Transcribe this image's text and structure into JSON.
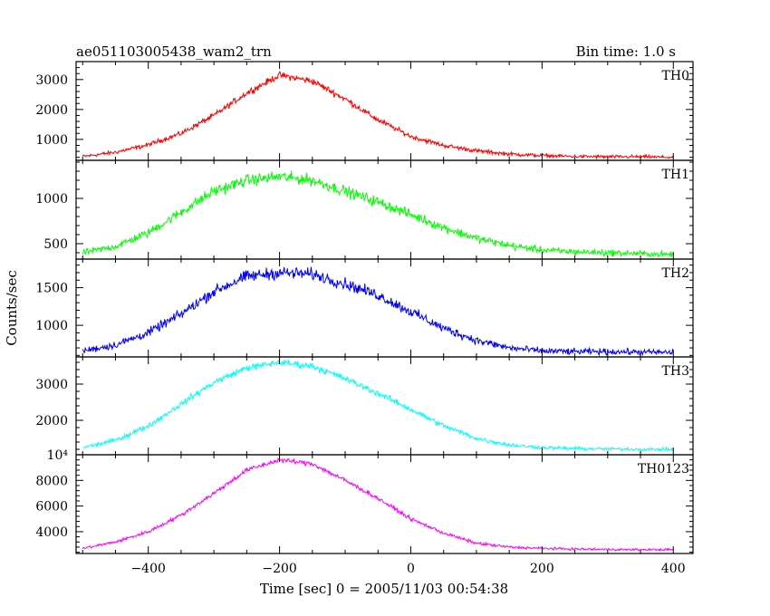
{
  "header": {
    "title": "ae051103005438_wam2_trn",
    "bin_time": "Bin time: 1.0 s"
  },
  "chart_data": {
    "type": "line",
    "xlabel": "Time [sec] 0 = 2005/11/03 00:54:38",
    "ylabel": "Counts/sec",
    "xlim": [
      -510,
      430
    ],
    "x_ticks": [
      -400,
      -200,
      0,
      200,
      400
    ],
    "x_tick_labels": [
      "−400",
      "−200",
      "0",
      "200",
      "400"
    ],
    "series": [
      {
        "name": "TH0",
        "color": "#ff0000",
        "ylim": [
          300,
          3600
        ],
        "y_ticks": [
          1000,
          2000,
          3000
        ],
        "y_tick_labels": [
          "1000",
          "2000",
          "3000"
        ],
        "baseline": 400,
        "peak": 3150,
        "peak_time": -200,
        "noise": 95,
        "x": [
          -500,
          -450,
          -400,
          -350,
          -300,
          -250,
          -200,
          -150,
          -100,
          -50,
          0,
          50,
          100,
          150,
          200,
          250,
          300,
          350,
          400
        ],
        "values": [
          430,
          570,
          820,
          1200,
          1800,
          2550,
          3150,
          2950,
          2350,
          1650,
          1100,
          800,
          620,
          510,
          460,
          430,
          420,
          420,
          400
        ]
      },
      {
        "name": "TH1",
        "color": "#00ff00",
        "ylim": [
          330,
          1420
        ],
        "y_ticks": [
          500,
          1000
        ],
        "y_tick_labels": [
          "500",
          "1000"
        ],
        "baseline": 380,
        "peak": 1240,
        "peak_time": -200,
        "noise": 55,
        "x": [
          -500,
          -450,
          -400,
          -350,
          -300,
          -250,
          -200,
          -150,
          -100,
          -50,
          0,
          50,
          100,
          150,
          200,
          250,
          300,
          350,
          400
        ],
        "values": [
          400,
          470,
          620,
          850,
          1080,
          1200,
          1240,
          1200,
          1080,
          960,
          820,
          680,
          560,
          480,
          430,
          410,
          400,
          390,
          380
        ]
      },
      {
        "name": "TH2",
        "color": "#0000ff",
        "ylim": [
          580,
          1880
        ],
        "y_ticks": [
          1000,
          1500
        ],
        "y_tick_labels": [
          "1000",
          "1500"
        ],
        "baseline": 640,
        "peak": 1700,
        "peak_time": -200,
        "noise": 70,
        "x": [
          -500,
          -450,
          -400,
          -350,
          -300,
          -250,
          -200,
          -150,
          -100,
          -50,
          0,
          50,
          100,
          150,
          200,
          250,
          300,
          350,
          400
        ],
        "values": [
          660,
          740,
          900,
          1150,
          1450,
          1650,
          1700,
          1680,
          1550,
          1400,
          1180,
          960,
          800,
          700,
          660,
          650,
          650,
          645,
          640
        ]
      },
      {
        "name": "TH3",
        "color": "#00ffff",
        "ylim": [
          1050,
          3750
        ],
        "y_ticks": [
          2000,
          3000
        ],
        "y_tick_labels": [
          "2000",
          "3000"
        ],
        "baseline": 1200,
        "peak": 3600,
        "peak_time": -200,
        "noise": 80,
        "x": [
          -500,
          -450,
          -400,
          -350,
          -300,
          -250,
          -200,
          -150,
          -100,
          -50,
          0,
          50,
          100,
          150,
          200,
          250,
          300,
          350,
          400
        ],
        "values": [
          1250,
          1450,
          1850,
          2450,
          3050,
          3450,
          3600,
          3500,
          3150,
          2750,
          2300,
          1850,
          1500,
          1320,
          1250,
          1220,
          1210,
          1200,
          1200
        ]
      },
      {
        "name": "TH0123",
        "color": "#ff00ff",
        "ylim": [
          2300,
          10000
        ],
        "y_ticks": [
          4000,
          6000,
          8000,
          10000
        ],
        "y_tick_labels": [
          "4000",
          "6000",
          "8000",
          "10⁴"
        ],
        "baseline": 2600,
        "peak": 9600,
        "peak_time": -200,
        "noise": 160,
        "x": [
          -500,
          -450,
          -400,
          -350,
          -300,
          -250,
          -200,
          -150,
          -100,
          -50,
          0,
          50,
          100,
          150,
          200,
          250,
          300,
          350,
          400
        ],
        "values": [
          2700,
          3200,
          4000,
          5300,
          7000,
          8800,
          9600,
          9300,
          8000,
          6600,
          5000,
          3900,
          3100,
          2800,
          2700,
          2650,
          2620,
          2600,
          2600
        ]
      }
    ]
  }
}
